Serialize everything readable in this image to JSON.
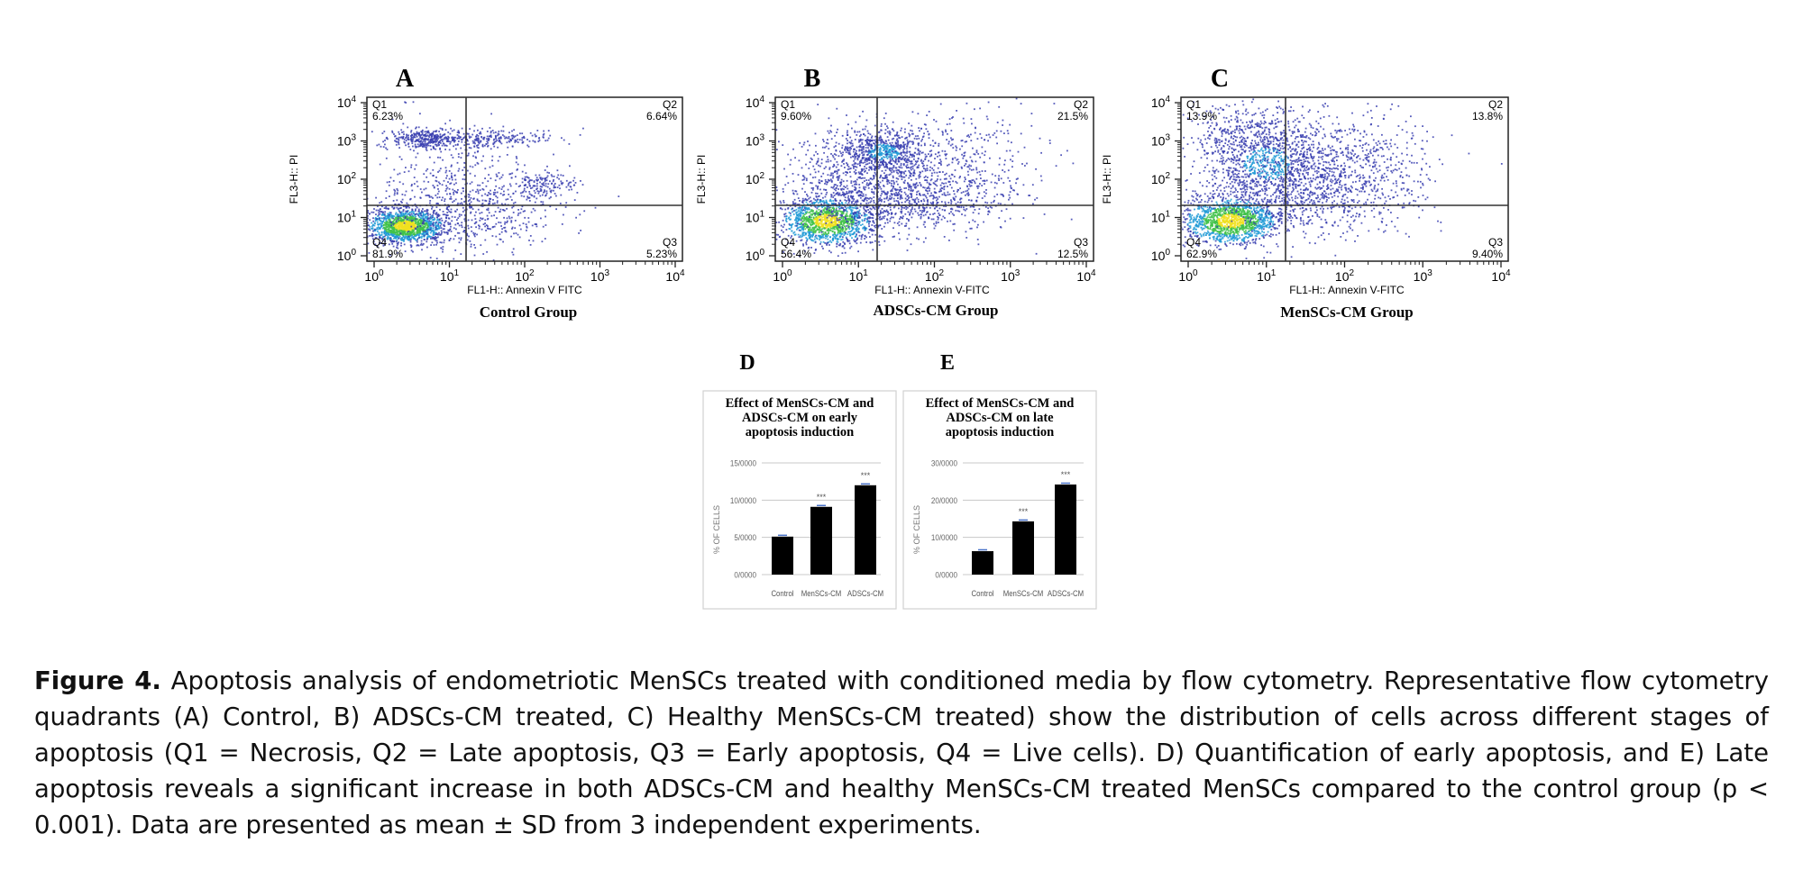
{
  "panels": [
    {
      "letter": "A",
      "title": "Control Group",
      "xlabel": "FL1-H:: Annexin V FITC",
      "ylabel": "FL3-H:: PI",
      "quadrants": {
        "q1_label": "Q1",
        "q1_value": "6.23%",
        "q2_label": "Q2",
        "q2_value": "6.64%",
        "q3_label": "Q3",
        "q3_value": "5.23%",
        "q4_label": "Q4",
        "q4_value": "81.9%"
      }
    },
    {
      "letter": "B",
      "title": "ADSCs-CM Group",
      "xlabel": "FL1-H:: Annexin V-FITC",
      "ylabel": "FL3-H:: PI",
      "quadrants": {
        "q1_label": "Q1",
        "q1_value": "9.60%",
        "q2_label": "Q2",
        "q2_value": "21.5%",
        "q3_label": "Q3",
        "q3_value": "12.5%",
        "q4_label": "Q4",
        "q4_value": "56.4%"
      }
    },
    {
      "letter": "C",
      "title": "MenSCs-CM Group",
      "xlabel": "FL1-H:: Annexin V-FITC",
      "ylabel": "FL3-H:: PI",
      "quadrants": {
        "q1_label": "Q1",
        "q1_value": "13.9%",
        "q2_label": "Q2",
        "q2_value": "13.8%",
        "q3_label": "Q3",
        "q3_value": "9.40%",
        "q4_label": "Q4",
        "q4_value": "62.9%"
      }
    }
  ],
  "log_ticks": {
    "base": "10",
    "exponents": [
      "0",
      "1",
      "2",
      "3",
      "4"
    ]
  },
  "chart_data": [
    {
      "type": "bar",
      "letter": "D",
      "title_lines": [
        "Effect of MenSCs-CM and",
        "ADSCs-CM on early",
        "apoptosis induction"
      ],
      "ylabel": "% OF CELLS",
      "categories": [
        "Control",
        "MenSCs-CM",
        "ADSCs-CM"
      ],
      "values": [
        5.1,
        9.1,
        12.0
      ],
      "significance": [
        "",
        "***",
        "***"
      ],
      "ylim": [
        0,
        15
      ],
      "ytick_values": [
        0,
        5,
        10,
        15
      ],
      "ytick_labels": [
        "0/0000",
        "5/0000",
        "10/0000",
        "15/0000"
      ]
    },
    {
      "type": "bar",
      "letter": "E",
      "title_lines": [
        "Effect of MenSCs-CM and",
        "ADSCs-CM on late",
        "apoptosis induction"
      ],
      "ylabel": "% OF CELLS",
      "categories": [
        "Control",
        "MenSCs-CM",
        "ADSCs-CM"
      ],
      "values": [
        6.3,
        14.3,
        24.2
      ],
      "significance": [
        "",
        "***",
        "***"
      ],
      "ylim": [
        0,
        30
      ],
      "ytick_values": [
        0,
        10,
        20,
        30
      ],
      "ytick_labels": [
        "0/0000",
        "10/0000",
        "20/0000",
        "30/0000"
      ]
    }
  ],
  "caption": {
    "label": "Figure 4.",
    "text": "Apoptosis analysis of endometriotic MenSCs treated with conditioned media by flow cytometry. Representative flow cytometry quadrants (A) Control, B) ADSCs-CM treated, C) Healthy MenSCs-CM treated) show the distribution of cells across different stages of apoptosis (Q1 = Necrosis, Q2 = Late apoptosis, Q3 = Early apoptosis, Q4 = Live cells). D) Quantification of early apoptosis, and E) Late apoptosis reveals a significant increase in both ADSCs-CM and healthy MenSCs-CM treated MenSCs compared to the control group (p < 0.001). Data are presented as mean ± SD from 3 independent experiments."
  },
  "colors": {
    "scatter_sparse": "#3a3fb0",
    "scatter_mid": "#1e9ad6",
    "scatter_dense": "#41c24a",
    "scatter_core": "#f0e020",
    "bar": "#000000",
    "error_bar": "#4a73c9",
    "grid": "#c8c8c8"
  }
}
